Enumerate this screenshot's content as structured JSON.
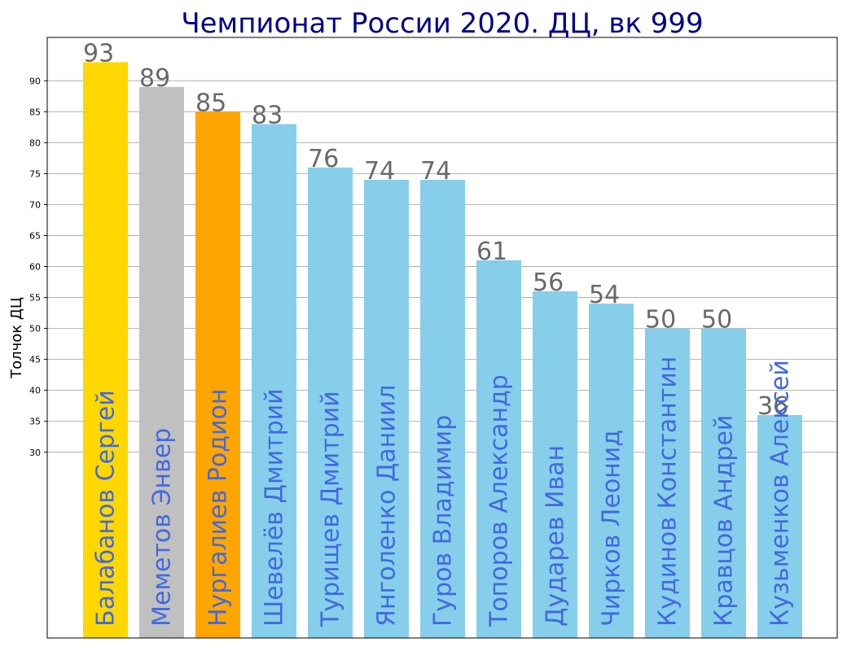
{
  "chart_data": {
    "type": "bar",
    "title": "Чемпионат России 2020. ДЦ, вк 999",
    "xlabel": "",
    "ylabel": "Толчок ДЦ",
    "ylim": [
      0,
      97
    ],
    "yticks": [
      30,
      35,
      40,
      45,
      50,
      55,
      60,
      65,
      70,
      75,
      80,
      85,
      90
    ],
    "grid": "horizontal",
    "categories": [
      "Балабанов Сергей",
      "Меметов Энвер",
      "Нургалиев Родион",
      "Шевелёв Дмитрий",
      "Турищев Дмитрий",
      "Янголенко Даниил",
      "Гуров Владимир",
      "Топоров Александр",
      "Дударев Иван",
      "Чирков Леонид",
      "Кудинов Константин",
      "Кравцов Андрей",
      "Кузьменков Алексей"
    ],
    "values": [
      93,
      89,
      85,
      83,
      76,
      74,
      74,
      61,
      56,
      54,
      50,
      50,
      36
    ],
    "bar_colors": [
      "#ffd700",
      "#c0c0c0",
      "#ffa500",
      "#87ceeb",
      "#87ceeb",
      "#87ceeb",
      "#87ceeb",
      "#87ceeb",
      "#87ceeb",
      "#87ceeb",
      "#87ceeb",
      "#87ceeb",
      "#87ceeb"
    ],
    "title_color": "#00008b",
    "value_label_color": "#696969",
    "name_label_color": "#4169e1",
    "grid_color": "#b0b0b0"
  }
}
